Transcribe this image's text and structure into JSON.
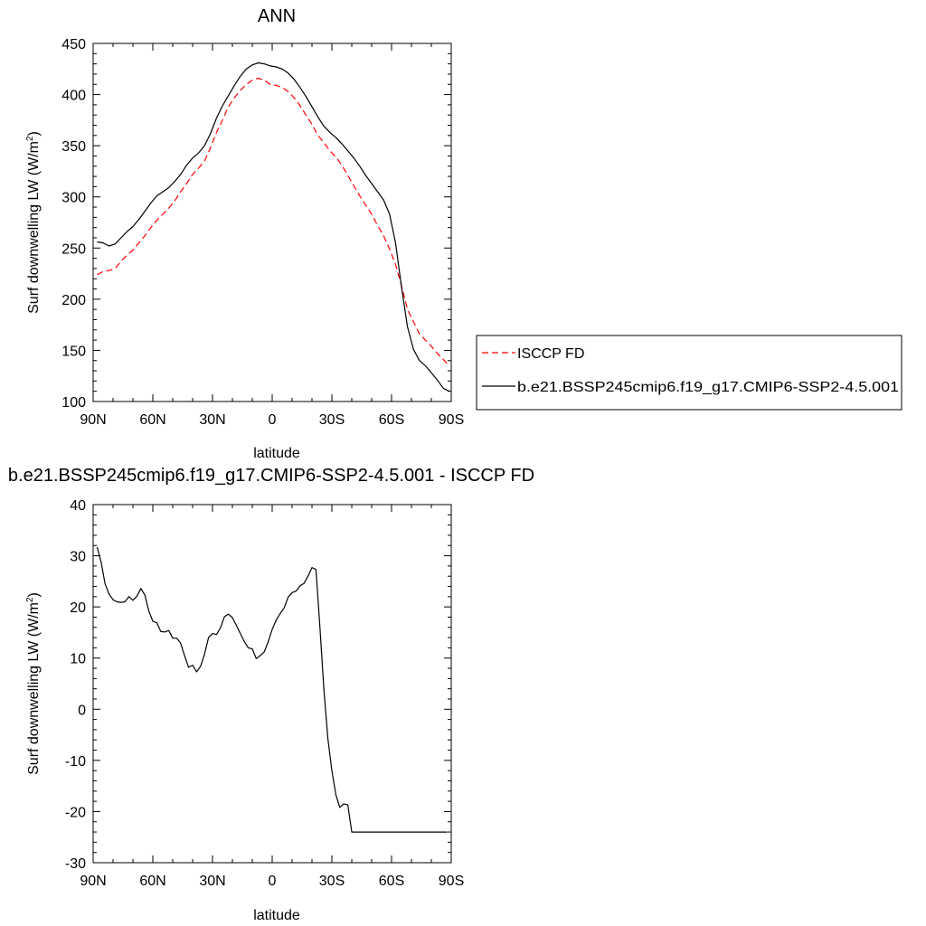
{
  "chart_data": [
    {
      "type": "line",
      "title": "ANN",
      "xlabel": "latitude",
      "ylabel": "Surf downwelling LW (W/m",
      "ylabel_sup": "2",
      "ylabel_close": ")",
      "xlim": [
        90,
        -90
      ],
      "ylim": [
        100,
        450
      ],
      "xtick_values": [
        90,
        60,
        30,
        0,
        -30,
        -60,
        -90
      ],
      "xtick_labels": [
        "90N",
        "60N",
        "30N",
        "0",
        "30S",
        "60S",
        "90S"
      ],
      "ytick_values": [
        100,
        150,
        200,
        250,
        300,
        350,
        400,
        450
      ],
      "ytick_labels": [
        "100",
        "150",
        "200",
        "250",
        "300",
        "350",
        "400",
        "450"
      ],
      "grid": false,
      "legend_position": "right",
      "series": [
        {
          "name": "ISCCP FD",
          "color": "#ff0000",
          "dash": "dashed",
          "x": [
            88,
            85,
            82,
            79,
            76,
            73,
            70,
            67,
            64,
            61,
            58,
            55,
            52,
            49,
            46,
            43,
            40,
            37,
            34,
            31,
            28,
            25,
            22,
            19,
            16,
            13,
            10,
            7,
            4,
            1,
            -2,
            -5,
            -8,
            -11,
            -14,
            -17,
            -20,
            -23,
            -26,
            -29,
            -32,
            -35,
            -38,
            -41,
            -44,
            -47,
            -50,
            -53,
            -56,
            -59,
            -62,
            -65,
            -68,
            -71,
            -74,
            -77,
            -80,
            -83,
            -86,
            -89
          ],
          "y": [
            224,
            227,
            228,
            230,
            237,
            243,
            248,
            255,
            262,
            270,
            277,
            283,
            289,
            296,
            305,
            313,
            322,
            328,
            335,
            348,
            363,
            375,
            388,
            397,
            404,
            410,
            414,
            416,
            414,
            410,
            409,
            407,
            403,
            397,
            389,
            380,
            371,
            360,
            353,
            345,
            339,
            331,
            321,
            311,
            301,
            292,
            283,
            272,
            262,
            249,
            234,
            213,
            190,
            178,
            166,
            160,
            154,
            147,
            141,
            135
          ]
        },
        {
          "name": "b.e21.BSSP245cmip6.f19_g17.CMIP6-SSP2-4.5.001",
          "color": "#000000",
          "dash": "solid",
          "x": [
            88,
            85,
            82,
            79,
            76,
            73,
            70,
            67,
            64,
            61,
            58,
            55,
            52,
            49,
            46,
            43,
            40,
            37,
            34,
            31,
            28,
            25,
            22,
            19,
            16,
            13,
            10,
            7,
            4,
            1,
            -2,
            -5,
            -8,
            -11,
            -14,
            -17,
            -20,
            -23,
            -26,
            -29,
            -32,
            -35,
            -38,
            -41,
            -44,
            -47,
            -50,
            -53,
            -56,
            -59,
            -62,
            -65,
            -68,
            -71,
            -74,
            -77,
            -80,
            -83,
            -86,
            -89
          ],
          "y": [
            256,
            255,
            252,
            254,
            260,
            266,
            271,
            278,
            286,
            294,
            301,
            305,
            309,
            315,
            322,
            331,
            338,
            343,
            350,
            362,
            377,
            389,
            399,
            409,
            418,
            425,
            429,
            431,
            430,
            428,
            427,
            425,
            421,
            415,
            407,
            398,
            388,
            378,
            369,
            363,
            358,
            352,
            345,
            338,
            330,
            321,
            313,
            305,
            297,
            283,
            255,
            212,
            173,
            151,
            140,
            135,
            128,
            121,
            113,
            110
          ]
        }
      ]
    },
    {
      "type": "line",
      "title": "b.e21.BSSP245cmip6.f19_g17.CMIP6-SSP2-4.5.001 - ISCCP FD",
      "xlabel": "latitude",
      "ylabel": "Surf downwelling LW (W/m",
      "ylabel_sup": "2",
      "ylabel_close": ")",
      "xlim": [
        90,
        -90
      ],
      "ylim": [
        -30,
        40
      ],
      "xtick_values": [
        90,
        60,
        30,
        0,
        -30,
        -60,
        -90
      ],
      "xtick_labels": [
        "90N",
        "60N",
        "30N",
        "0",
        "30S",
        "60S",
        "90S"
      ],
      "ytick_values": [
        -30,
        -20,
        -10,
        0,
        10,
        20,
        30,
        40
      ],
      "ytick_labels": [
        "-30",
        "-20",
        "-10",
        "0",
        "10",
        "20",
        "30",
        "40"
      ],
      "grid": false,
      "series": [
        {
          "color": "#000000",
          "dash": "solid",
          "x": [
            88,
            86,
            84,
            82,
            80,
            78,
            76,
            74,
            72,
            70,
            68,
            66,
            64,
            62,
            60,
            58,
            56,
            54,
            52,
            50,
            48,
            46,
            44,
            42,
            40,
            38,
            36,
            34,
            32,
            30,
            28,
            26,
            24,
            22,
            20,
            18,
            16,
            14,
            12,
            10,
            8,
            6,
            4,
            2,
            0,
            -2,
            -4,
            -6,
            -8,
            -10,
            -12,
            -14,
            -16,
            -18,
            -20,
            -22,
            -24,
            -26,
            -28,
            -30,
            -32,
            -34,
            -36,
            -38,
            -40,
            -42,
            -44,
            -46,
            -48,
            -50,
            -52,
            -54,
            -56,
            -58,
            -60,
            -62,
            -64,
            -66,
            -68,
            -70,
            -72,
            -74,
            -76,
            -78,
            -80,
            -82,
            -84,
            -86,
            -88
          ],
          "y": [
            31.7,
            28.8,
            24.5,
            22.5,
            21.4,
            21.0,
            20.9,
            21.0,
            22.0,
            21.3,
            22.1,
            23.6,
            22.3,
            19.2,
            17.2,
            16.9,
            15.2,
            15.1,
            15.4,
            13.9,
            13.9,
            12.9,
            10.4,
            8.2,
            8.6,
            7.3,
            8.4,
            10.8,
            14.0,
            14.8,
            14.6,
            15.9,
            18.1,
            18.6,
            17.9,
            16.4,
            14.8,
            13.2,
            12.0,
            11.8,
            9.9,
            10.5,
            11.2,
            13.2,
            15.6,
            17.4,
            18.7,
            19.8,
            21.9,
            22.8,
            23.1,
            24.1,
            24.6,
            26.0,
            27.7,
            27.3,
            16.0,
            3.8,
            -5.8,
            -12.0,
            -16.7,
            -19.2,
            -18.5,
            -18.7,
            -24.0,
            -24.0,
            -24.0,
            -24.0,
            -24.0,
            -24.0,
            -24.0,
            -24.0,
            -24.0,
            -24.0,
            -24.0,
            -24.0,
            -24.0,
            -24.0,
            -24.0,
            -24.0,
            -24.0,
            -24.0,
            -24.0,
            -24.0,
            -24.0,
            -24.0,
            -24.0,
            -24.0,
            -24.0
          ]
        }
      ]
    }
  ]
}
